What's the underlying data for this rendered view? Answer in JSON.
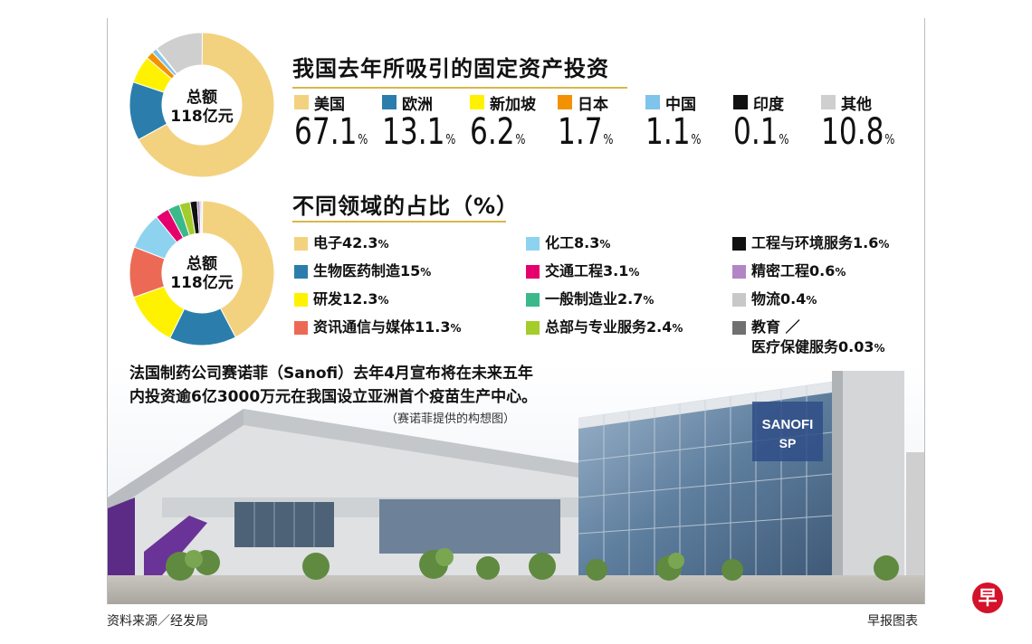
{
  "chart_data": [
    {
      "type": "pie",
      "title": "我国去年所吸引的固定资产投资",
      "center_label": [
        "总额",
        "118亿元"
      ],
      "categories": [
        "美国",
        "欧洲",
        "新加坡",
        "日本",
        "中国",
        "印度",
        "其他"
      ],
      "display_values": [
        "67.1",
        "13.1",
        "6.2",
        "1.7",
        "1.1",
        "0.1",
        "10.8"
      ],
      "values": [
        67.1,
        13.1,
        6.2,
        1.7,
        1.1,
        0.1,
        10.8
      ],
      "unit": "%",
      "colors": [
        "#f3d27f",
        "#2b7eab",
        "#fff200",
        "#f39200",
        "#7fc4ea",
        "#111111",
        "#cfcfcf"
      ]
    },
    {
      "type": "pie",
      "title": "不同领域的占比（%）",
      "center_label": [
        "总额",
        "118亿元"
      ],
      "categories": [
        "电子",
        "生物医药制造",
        "研发",
        "资讯通信与媒体",
        "化工",
        "交通工程",
        "一般制造业",
        "总部与专业服务",
        "工程与环境服务",
        "精密工程",
        "物流",
        "教育／医疗保健服务"
      ],
      "display_values": [
        "42.3",
        "15",
        "12.3",
        "11.3",
        "8.3",
        "3.1",
        "2.7",
        "2.4",
        "1.6",
        "0.6",
        "0.4",
        "0.03"
      ],
      "values": [
        42.3,
        15,
        12.3,
        11.3,
        8.3,
        3.1,
        2.7,
        2.4,
        1.6,
        0.6,
        0.4,
        0.03
      ],
      "unit": "%",
      "colors": [
        "#f3d27f",
        "#2b7eab",
        "#fff200",
        "#ec6a55",
        "#8dd3f0",
        "#e5006e",
        "#3cb98a",
        "#a4cc2b",
        "#111111",
        "#b286c4",
        "#c8c8c8",
        "#707070"
      ]
    }
  ],
  "caption": {
    "line1": "法国制药公司赛诺菲（Sanofi）去年4月宣布将在未来五年",
    "line2": "内投资逾6亿3000万元在我国设立亚洲首个疫苗生产中心。",
    "credit": "（赛诺菲提供的构想图）"
  },
  "photo": {
    "sign_top": "SANOFI",
    "sign_bottom": "SP"
  },
  "footer": {
    "source": "资料来源／经发局",
    "graphic": "早报图表"
  },
  "logo": {
    "text": "早"
  }
}
